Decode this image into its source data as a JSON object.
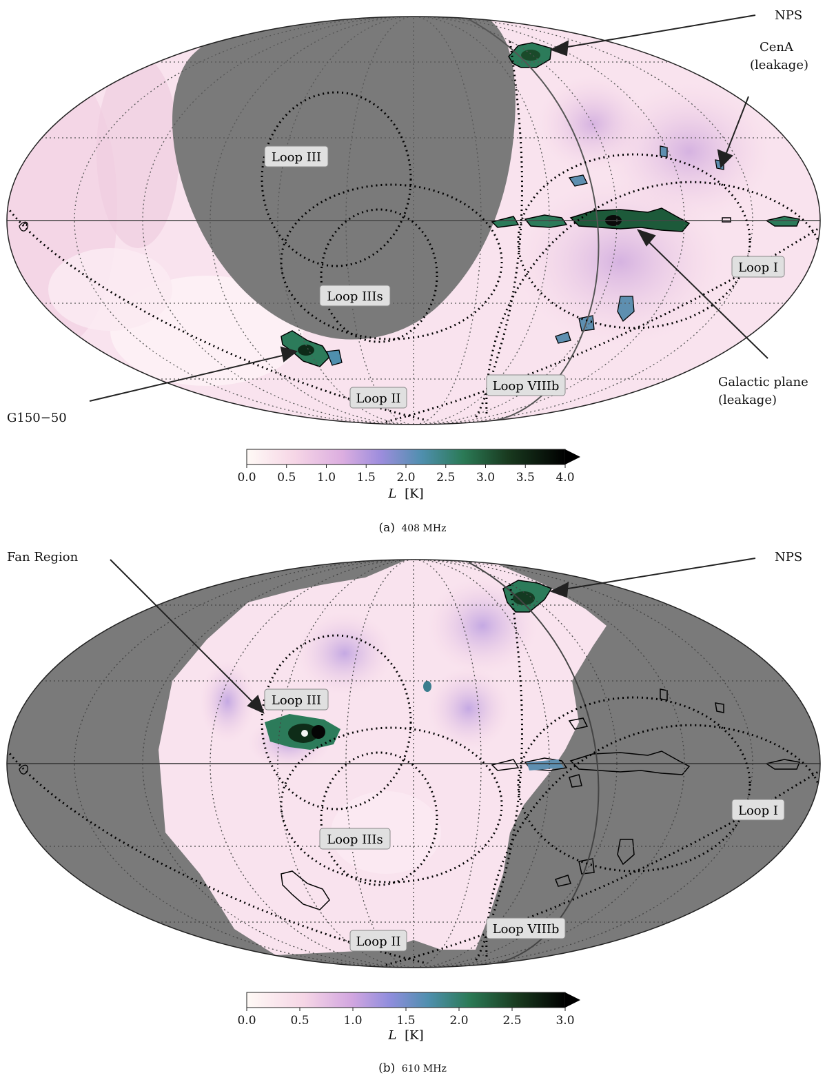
{
  "figure": {
    "panels": [
      {
        "id": "a",
        "caption_label": "(a)",
        "caption_freq": "408 MHz",
        "colorbar": {
          "ticks": [
            "0.0",
            "0.5",
            "1.0",
            "1.5",
            "2.0",
            "2.5",
            "3.0",
            "3.5",
            "4.0"
          ],
          "label_var": "L",
          "label_unit": "[K]",
          "max": 4.0,
          "extend": "max"
        },
        "loops": [
          "Loop III",
          "Loop IIIs",
          "Loop II",
          "Loop VIIIb",
          "Loop I"
        ],
        "annotations": {
          "nps": "NPS",
          "cena_line1": "CenA",
          "cena_line2": "(leakage)",
          "gp_line1": "Galactic plane",
          "gp_line2": "(leakage)",
          "g150": "G150−50"
        },
        "masked_region": "northern cap (left-center)"
      },
      {
        "id": "b",
        "caption_label": "(b)",
        "caption_freq": "610 MHz",
        "colorbar": {
          "ticks": [
            "0.0",
            "0.5",
            "1.0",
            "1.5",
            "2.0",
            "2.5",
            "3.0"
          ],
          "label_var": "L",
          "label_unit": "[K]",
          "max": 3.0,
          "extend": "max"
        },
        "loops": [
          "Loop III",
          "Loop IIIs",
          "Loop II",
          "Loop VIIIb",
          "Loop I"
        ],
        "annotations": {
          "fan": "Fan Region",
          "nps": "NPS"
        },
        "masked_region": "outside observed footprint"
      }
    ],
    "colors": {
      "mask_gray": "#7a7a7a",
      "cmap_stops": [
        "#fff8f4",
        "#f3cde0",
        "#d9a6d8",
        "#9b86d8",
        "#4f8aa6",
        "#2c7b5a",
        "#1a4a2a",
        "#050505"
      ]
    },
    "projection": "Mollweide"
  }
}
